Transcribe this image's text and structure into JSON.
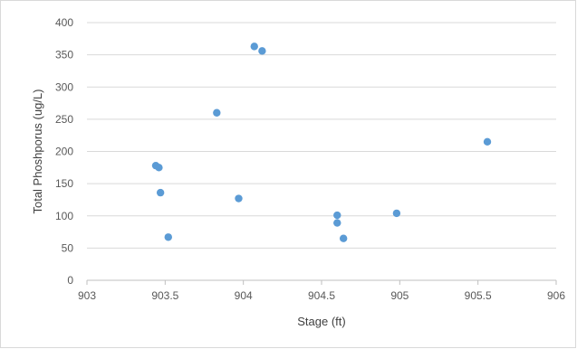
{
  "chart_data": {
    "type": "scatter",
    "title": "",
    "xlabel": "Stage (ft)",
    "ylabel": "Total Phoshporus (ug/L)",
    "xlim": [
      903,
      906
    ],
    "ylim": [
      0,
      400
    ],
    "x_ticks": [
      903,
      903.5,
      904,
      904.5,
      905,
      905.5,
      906
    ],
    "x_tick_labels": [
      "903",
      "903.5",
      "904",
      "904.5",
      "905",
      "905.5",
      "906"
    ],
    "y_ticks": [
      0,
      50,
      100,
      150,
      200,
      250,
      300,
      350,
      400
    ],
    "y_tick_labels": [
      "0",
      "50",
      "100",
      "150",
      "200",
      "250",
      "300",
      "350",
      "400"
    ],
    "grid": "horizontal",
    "legend": "none",
    "marker_color": "#5b9bd5",
    "gridline_color": "#d9d9d9",
    "series": [
      {
        "x": [
          903.44,
          903.46,
          903.47,
          903.52,
          903.83,
          903.97,
          904.07,
          904.12,
          904.6,
          904.6,
          904.64,
          904.98,
          905.56
        ],
        "y": [
          178,
          175,
          136,
          67,
          260,
          127,
          363,
          356,
          101,
          89,
          65,
          104,
          215
        ]
      }
    ]
  }
}
